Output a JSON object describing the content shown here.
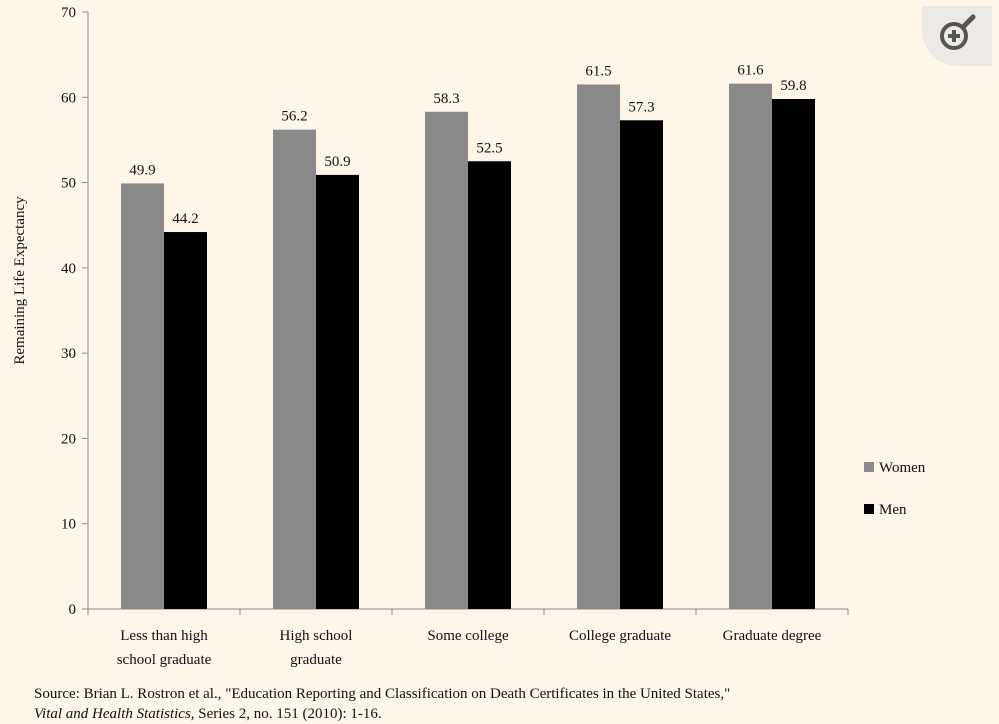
{
  "chart_data": {
    "type": "bar",
    "categories": [
      [
        "Less than high",
        "school graduate"
      ],
      [
        "High school",
        "graduate"
      ],
      [
        "Some college"
      ],
      [
        "College graduate"
      ],
      [
        "Graduate degree"
      ]
    ],
    "series": [
      {
        "name": "Women",
        "values": [
          49.9,
          56.2,
          58.3,
          61.5,
          61.6
        ],
        "labels": [
          "49.9",
          "56.2",
          "58.3",
          "61.5",
          "61.6"
        ],
        "color": "#8a8a8a"
      },
      {
        "name": "Men",
        "values": [
          44.2,
          50.9,
          52.5,
          57.3,
          59.8
        ],
        "labels": [
          "44.2",
          "50.9",
          "52.5",
          "57.3",
          "59.8"
        ],
        "color": "#000000"
      }
    ],
    "ylabel": "Remaining Life Expectancy",
    "xlabel": "",
    "ylim": [
      0,
      70
    ],
    "yticks": [
      "0",
      "10",
      "20",
      "30",
      "40",
      "50",
      "60",
      "70"
    ],
    "grid": false,
    "legend_position": "right"
  },
  "source": {
    "line1": "Source: Brian L. Rostron et al., \"Education Reporting and Classification on Death Certificates in the United States,\"",
    "journal": "Vital and Health Statistics",
    "line2_rest": ", Series 2, no. 151 (2010): 1-16."
  },
  "zoom_control": {
    "icon": "zoom-in-icon",
    "color": "#555555"
  }
}
